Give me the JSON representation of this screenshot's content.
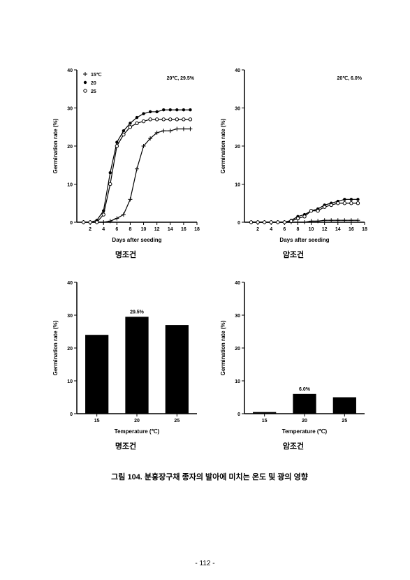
{
  "page_number": "- 112 -",
  "caption": "그림 104. 분홍장구채 종자의 발아에 미치는 온도 및 광의 영향",
  "subtitle_light": "명조건",
  "subtitle_dark": "암조건",
  "line_chart_left": {
    "type": "line",
    "xlabel": "Days after seeding",
    "ylabel": "Germination rate (%)",
    "ylim": [
      0,
      40
    ],
    "ytick_step": 10,
    "xlim": [
      0,
      18
    ],
    "xtick_step": 2,
    "legend": [
      "15℃",
      "20",
      "25"
    ],
    "legend_markers": [
      "+",
      "●",
      "○"
    ],
    "annotation": "20℃, 29.5%",
    "background_color": "#ffffff",
    "axis_color": "#000000",
    "line_color": "#000000",
    "axis_fontsize": 7,
    "series": {
      "t15": [
        [
          1,
          0
        ],
        [
          2,
          0
        ],
        [
          3,
          0
        ],
        [
          4,
          0
        ],
        [
          5,
          0.3
        ],
        [
          6,
          1
        ],
        [
          7,
          2
        ],
        [
          8,
          6
        ],
        [
          9,
          14
        ],
        [
          10,
          20
        ],
        [
          11,
          22
        ],
        [
          12,
          23.5
        ],
        [
          13,
          24
        ],
        [
          14,
          24
        ],
        [
          15,
          24.5
        ],
        [
          16,
          24.5
        ],
        [
          17,
          24.5
        ]
      ],
      "t20": [
        [
          1,
          0
        ],
        [
          2,
          0
        ],
        [
          3,
          0.5
        ],
        [
          4,
          3
        ],
        [
          5,
          13
        ],
        [
          6,
          21
        ],
        [
          7,
          24
        ],
        [
          8,
          26
        ],
        [
          9,
          27.5
        ],
        [
          10,
          28.5
        ],
        [
          11,
          29
        ],
        [
          12,
          29
        ],
        [
          13,
          29.5
        ],
        [
          14,
          29.5
        ],
        [
          15,
          29.5
        ],
        [
          16,
          29.5
        ],
        [
          17,
          29.5
        ]
      ],
      "t25": [
        [
          1,
          0
        ],
        [
          2,
          0
        ],
        [
          3,
          0
        ],
        [
          4,
          2
        ],
        [
          5,
          10
        ],
        [
          6,
          20
        ],
        [
          7,
          23
        ],
        [
          8,
          25
        ],
        [
          9,
          26
        ],
        [
          10,
          26.5
        ],
        [
          11,
          27
        ],
        [
          12,
          27
        ],
        [
          13,
          27
        ],
        [
          14,
          27
        ],
        [
          15,
          27
        ],
        [
          16,
          27
        ],
        [
          17,
          27
        ]
      ]
    }
  },
  "line_chart_right": {
    "type": "line",
    "xlabel": "Days after seeding",
    "ylabel": "Germination rate (%)",
    "ylim": [
      0,
      40
    ],
    "ytick_step": 10,
    "xlim": [
      0,
      18
    ],
    "xtick_step": 2,
    "annotation": "20℃, 6.0%",
    "background_color": "#ffffff",
    "axis_color": "#000000",
    "line_color": "#000000",
    "axis_fontsize": 7,
    "series": {
      "t15": [
        [
          1,
          0
        ],
        [
          2,
          0
        ],
        [
          3,
          0
        ],
        [
          4,
          0
        ],
        [
          5,
          0
        ],
        [
          6,
          0
        ],
        [
          7,
          0
        ],
        [
          8,
          0
        ],
        [
          9,
          0
        ],
        [
          10,
          0.3
        ],
        [
          11,
          0.3
        ],
        [
          12,
          0.5
        ],
        [
          13,
          0.5
        ],
        [
          14,
          0.5
        ],
        [
          15,
          0.5
        ],
        [
          16,
          0.5
        ],
        [
          17,
          0.5
        ]
      ],
      "t20": [
        [
          1,
          0
        ],
        [
          2,
          0
        ],
        [
          3,
          0
        ],
        [
          4,
          0
        ],
        [
          5,
          0
        ],
        [
          6,
          0
        ],
        [
          7,
          0.5
        ],
        [
          8,
          1.5
        ],
        [
          9,
          2
        ],
        [
          10,
          3
        ],
        [
          11,
          3.5
        ],
        [
          12,
          4.5
        ],
        [
          13,
          5
        ],
        [
          14,
          5.5
        ],
        [
          15,
          6
        ],
        [
          16,
          6
        ],
        [
          17,
          6
        ]
      ],
      "t25": [
        [
          1,
          0
        ],
        [
          2,
          0
        ],
        [
          3,
          0
        ],
        [
          4,
          0
        ],
        [
          5,
          0
        ],
        [
          6,
          0
        ],
        [
          7,
          0.3
        ],
        [
          8,
          1
        ],
        [
          9,
          1.5
        ],
        [
          10,
          3
        ],
        [
          11,
          3
        ],
        [
          12,
          4
        ],
        [
          13,
          4.5
        ],
        [
          14,
          5
        ],
        [
          15,
          5
        ],
        [
          16,
          5
        ],
        [
          17,
          5
        ]
      ]
    }
  },
  "bar_chart_left": {
    "type": "bar",
    "xlabel": "Temperature (℃)",
    "ylabel": "Germination rate (%)",
    "ylim": [
      0,
      40
    ],
    "ytick_step": 10,
    "categories": [
      "15",
      "20",
      "25"
    ],
    "values": [
      24,
      29.5,
      27
    ],
    "annotation": "29.5%",
    "bar_color": "#000000",
    "background_color": "#ffffff",
    "axis_color": "#000000",
    "bar_width": 0.58,
    "axis_fontsize": 7
  },
  "bar_chart_right": {
    "type": "bar",
    "xlabel": "Temperature (℃)",
    "ylabel": "Germination rate (%)",
    "ylim": [
      0,
      40
    ],
    "ytick_step": 10,
    "categories": [
      "15",
      "20",
      "25"
    ],
    "values": [
      0.5,
      6,
      5
    ],
    "annotation": "6.0%",
    "bar_color": "#000000",
    "background_color": "#ffffff",
    "axis_color": "#000000",
    "bar_width": 0.58,
    "axis_fontsize": 7
  }
}
